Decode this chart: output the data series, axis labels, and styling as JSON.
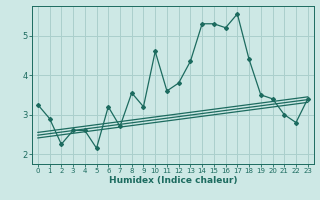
{
  "title": "",
  "xlabel": "Humidex (Indice chaleur)",
  "bg_color": "#cde8e5",
  "grid_color": "#aacfcc",
  "line_color": "#1c6b5f",
  "xlim": [
    -0.5,
    23.5
  ],
  "ylim": [
    1.75,
    5.75
  ],
  "xticks": [
    0,
    1,
    2,
    3,
    4,
    5,
    6,
    7,
    8,
    9,
    10,
    11,
    12,
    13,
    14,
    15,
    16,
    17,
    18,
    19,
    20,
    21,
    22,
    23
  ],
  "yticks": [
    2,
    3,
    4,
    5
  ],
  "main_x": [
    0,
    1,
    2,
    3,
    4,
    5,
    6,
    7,
    8,
    9,
    10,
    11,
    12,
    13,
    14,
    15,
    16,
    17,
    18,
    19,
    20,
    21,
    22,
    23
  ],
  "main_y": [
    3.25,
    2.9,
    2.25,
    2.6,
    2.6,
    2.15,
    3.2,
    2.7,
    3.55,
    3.2,
    4.6,
    3.6,
    3.8,
    4.35,
    5.3,
    5.3,
    5.2,
    5.55,
    4.4,
    3.5,
    3.4,
    3.0,
    2.8,
    3.4
  ],
  "trend_lines": [
    {
      "x": [
        0,
        23
      ],
      "y": [
        2.55,
        3.45
      ]
    },
    {
      "x": [
        0,
        23
      ],
      "y": [
        2.48,
        3.38
      ]
    },
    {
      "x": [
        0,
        23
      ],
      "y": [
        2.41,
        3.31
      ]
    }
  ]
}
